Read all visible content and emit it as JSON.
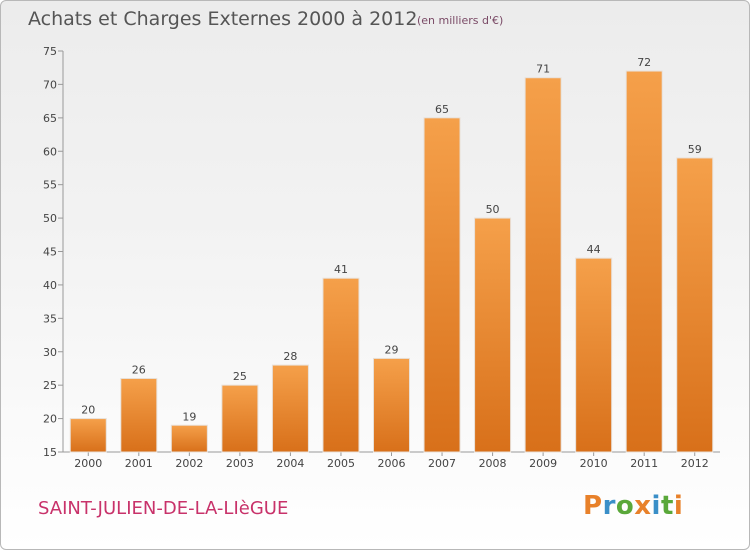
{
  "header": {
    "title": "Achats et Charges Externes 2000 à 2012",
    "subtitle": "(en milliers d'€)"
  },
  "footer": {
    "commune": "SAINT-JULIEN-DE-LA-LIèGUE",
    "logo_text": "Proxiti"
  },
  "colors": {
    "bar_top": "#f5a04a",
    "bar_bottom": "#d8701a",
    "commune_text": "#c8326a",
    "logo_letters": [
      "#e8812a",
      "#3a8fc8",
      "#5aa83a",
      "#e8812a",
      "#3a8fc8",
      "#5aa83a",
      "#e8812a"
    ]
  },
  "chart_data": {
    "type": "bar",
    "categories": [
      "2000",
      "2001",
      "2002",
      "2003",
      "2004",
      "2005",
      "2006",
      "2007",
      "2008",
      "2009",
      "2010",
      "2011",
      "2012"
    ],
    "values": [
      20,
      26,
      19,
      25,
      28,
      41,
      29,
      65,
      50,
      71,
      44,
      72,
      59
    ],
    "ylim": [
      15,
      75
    ],
    "yticks": [
      15,
      20,
      25,
      30,
      35,
      40,
      45,
      50,
      55,
      60,
      65,
      70,
      75
    ],
    "grid": false,
    "data_labels": true
  }
}
